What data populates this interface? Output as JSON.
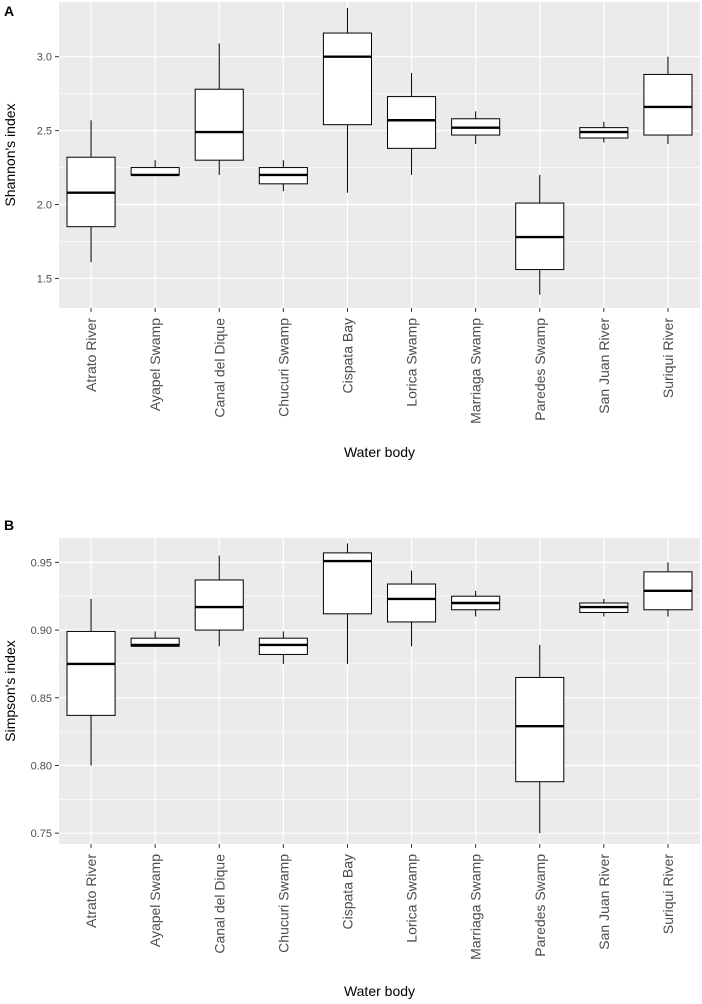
{
  "chart_data": [
    {
      "panel": "A",
      "type": "box",
      "xlabel": "Water body",
      "ylabel": "Shannon's index",
      "ylim": [
        1.3,
        3.37
      ],
      "yticks": [
        1.5,
        2.0,
        2.5,
        3.0
      ],
      "ytick_labels": [
        "1.5",
        "2.0",
        "2.5",
        "3.0"
      ],
      "categories": [
        "Atrato River",
        "Ayapel Swamp",
        "Canal del Dique",
        "Chucuri Swamp",
        "Cispata Bay",
        "Lorica Swamp",
        "Marriaga Swamp",
        "Paredes Swamp",
        "San Juan River",
        "Suriqui River"
      ],
      "boxes": [
        {
          "min": 1.61,
          "q1": 1.85,
          "median": 2.08,
          "q3": 2.32,
          "max": 2.57
        },
        {
          "min": 2.2,
          "q1": 2.2,
          "median": 2.2,
          "q3": 2.25,
          "max": 2.3
        },
        {
          "min": 2.2,
          "q1": 2.3,
          "median": 2.49,
          "q3": 2.78,
          "max": 3.09
        },
        {
          "min": 2.09,
          "q1": 2.14,
          "median": 2.2,
          "q3": 2.25,
          "max": 2.3
        },
        {
          "min": 2.08,
          "q1": 2.54,
          "median": 3.0,
          "q3": 3.16,
          "max": 3.33
        },
        {
          "min": 2.2,
          "q1": 2.38,
          "median": 2.57,
          "q3": 2.73,
          "max": 2.89
        },
        {
          "min": 2.41,
          "q1": 2.47,
          "median": 2.52,
          "q3": 2.58,
          "max": 2.63
        },
        {
          "min": 1.39,
          "q1": 1.56,
          "median": 1.78,
          "q3": 2.01,
          "max": 2.2
        },
        {
          "min": 2.42,
          "q1": 2.45,
          "median": 2.49,
          "q3": 2.52,
          "max": 2.56
        },
        {
          "min": 2.41,
          "q1": 2.47,
          "median": 2.66,
          "q3": 2.88,
          "max": 3.0
        }
      ]
    },
    {
      "panel": "B",
      "type": "box",
      "xlabel": "Water body",
      "ylabel": "Simpson's index",
      "ylim": [
        0.742,
        0.968
      ],
      "yticks": [
        0.75,
        0.8,
        0.85,
        0.9,
        0.95
      ],
      "ytick_labels": [
        "0.75",
        "0.80",
        "0.85",
        "0.90",
        "0.95"
      ],
      "categories": [
        "Atrato River",
        "Ayapel Swamp",
        "Canal del Dique",
        "Chucuri Swamp",
        "Cispata Bay",
        "Lorica Swamp",
        "Marriaga Swamp",
        "Paredes Swamp",
        "San Juan River",
        "Suriqui River"
      ],
      "boxes": [
        {
          "min": 0.8,
          "q1": 0.837,
          "median": 0.875,
          "q3": 0.899,
          "max": 0.923
        },
        {
          "min": 0.888,
          "q1": 0.888,
          "median": 0.889,
          "q3": 0.894,
          "max": 0.899
        },
        {
          "min": 0.888,
          "q1": 0.9,
          "median": 0.917,
          "q3": 0.937,
          "max": 0.955
        },
        {
          "min": 0.875,
          "q1": 0.882,
          "median": 0.889,
          "q3": 0.894,
          "max": 0.899
        },
        {
          "min": 0.875,
          "q1": 0.912,
          "median": 0.951,
          "q3": 0.957,
          "max": 0.964
        },
        {
          "min": 0.888,
          "q1": 0.906,
          "median": 0.923,
          "q3": 0.934,
          "max": 0.944
        },
        {
          "min": 0.91,
          "q1": 0.915,
          "median": 0.92,
          "q3": 0.925,
          "max": 0.929
        },
        {
          "min": 0.75,
          "q1": 0.788,
          "median": 0.829,
          "q3": 0.865,
          "max": 0.889
        },
        {
          "min": 0.91,
          "q1": 0.913,
          "median": 0.917,
          "q3": 0.92,
          "max": 0.923
        },
        {
          "min": 0.91,
          "q1": 0.915,
          "median": 0.929,
          "q3": 0.943,
          "max": 0.95
        }
      ]
    }
  ],
  "colors": {
    "panel_background": "#ebebeb",
    "grid": "#ffffff",
    "box_fill": "#ffffff",
    "box_stroke": "#000000",
    "tick_text": "#4d4d4d"
  }
}
